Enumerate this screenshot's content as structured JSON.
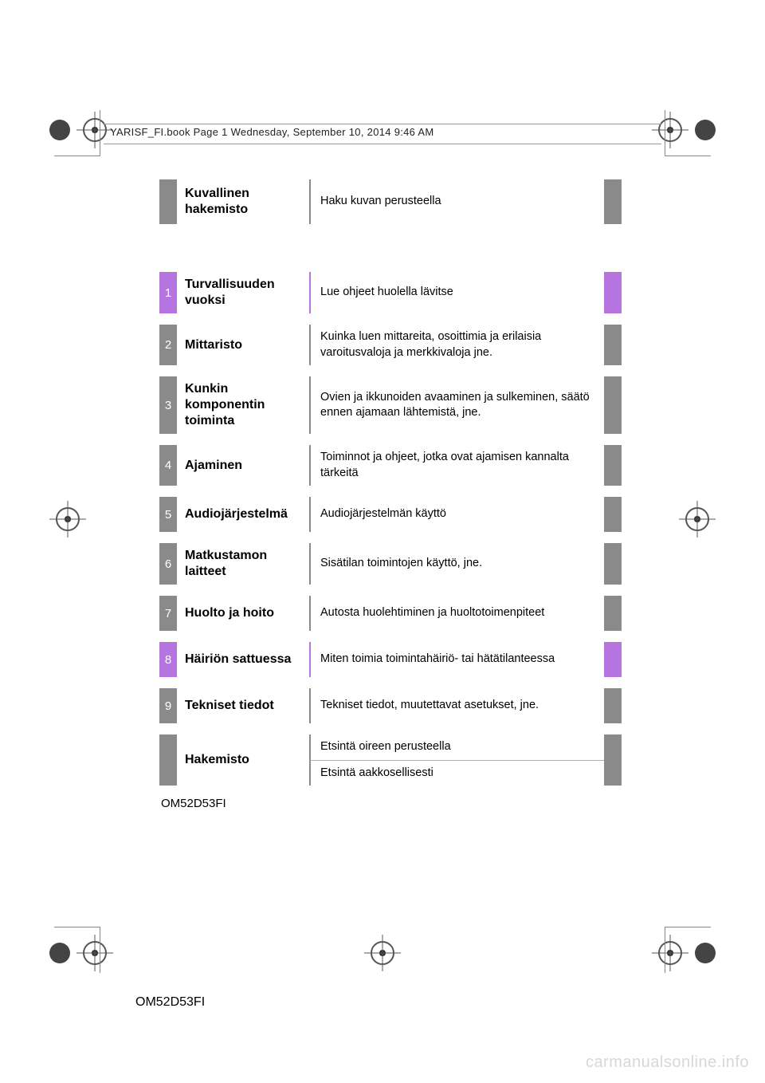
{
  "colors": {
    "gray": "#8a8a8a",
    "gray_light": "#b0b0b0",
    "purple": "#b674e0",
    "text": "#000000",
    "white": "#ffffff",
    "watermark": "#d7d7d7"
  },
  "header_line": "YARISF_FI.book  Page 1  Wednesday, September 10, 2014  9:46 AM",
  "pictorial": {
    "title": "Kuvallinen hakemisto",
    "desc": "Haku kuvan perusteella",
    "tab_color": "#8a8a8a",
    "border_color": "#8a8a8a"
  },
  "sections": [
    {
      "num": "1",
      "title": "Turvallisuuden vuoksi",
      "desc": "Lue ohjeet huolella lävitse",
      "tab_color": "#b674e0",
      "border_color": "#b674e0"
    },
    {
      "num": "2",
      "title": "Mittaristo",
      "desc": "Kuinka luen mittareita, osoittimia ja erilaisia varoitusvaloja ja merkkivaloja jne.",
      "tab_color": "#8a8a8a",
      "border_color": "#8a8a8a"
    },
    {
      "num": "3",
      "title": "Kunkin komponentin toiminta",
      "desc": "Ovien ja ikkunoiden avaaminen ja sulkeminen, säätö ennen ajamaan lähtemistä, jne.",
      "tab_color": "#8a8a8a",
      "border_color": "#8a8a8a"
    },
    {
      "num": "4",
      "title": "Ajaminen",
      "desc": "Toiminnot ja ohjeet, jotka ovat ajamisen kannalta tärkeitä",
      "tab_color": "#8a8a8a",
      "border_color": "#8a8a8a"
    },
    {
      "num": "5",
      "title": "Audiojärjestelmä",
      "desc": "Audiojärjestelmän käyttö",
      "tab_color": "#8a8a8a",
      "border_color": "#8a8a8a"
    },
    {
      "num": "6",
      "title": "Matkustamon laitteet",
      "desc": "Sisätilan toimintojen käyttö, jne.",
      "tab_color": "#8a8a8a",
      "border_color": "#8a8a8a"
    },
    {
      "num": "7",
      "title": "Huolto ja hoito",
      "desc": "Autosta huolehtiminen ja huoltotoimenpiteet",
      "tab_color": "#8a8a8a",
      "border_color": "#8a8a8a"
    },
    {
      "num": "8",
      "title": "Häiriön sattuessa",
      "desc": "Miten toimia toimintahäiriö- tai hätätilanteessa",
      "tab_color": "#b674e0",
      "border_color": "#b674e0"
    },
    {
      "num": "9",
      "title": "Tekniset tiedot",
      "desc": "Tekniset tiedot, muutettavat asetukset, jne.",
      "tab_color": "#8a8a8a",
      "border_color": "#8a8a8a"
    }
  ],
  "index": {
    "title": "Hakemisto",
    "rows": [
      "Etsintä oireen perusteella",
      "Etsintä aakkosellisesti"
    ],
    "tab_color": "#8a8a8a",
    "border_color": "#8a8a8a"
  },
  "doc_code": "OM52D53FI",
  "footer_code": "OM52D53FI",
  "watermark": "carmanualsonline.info"
}
